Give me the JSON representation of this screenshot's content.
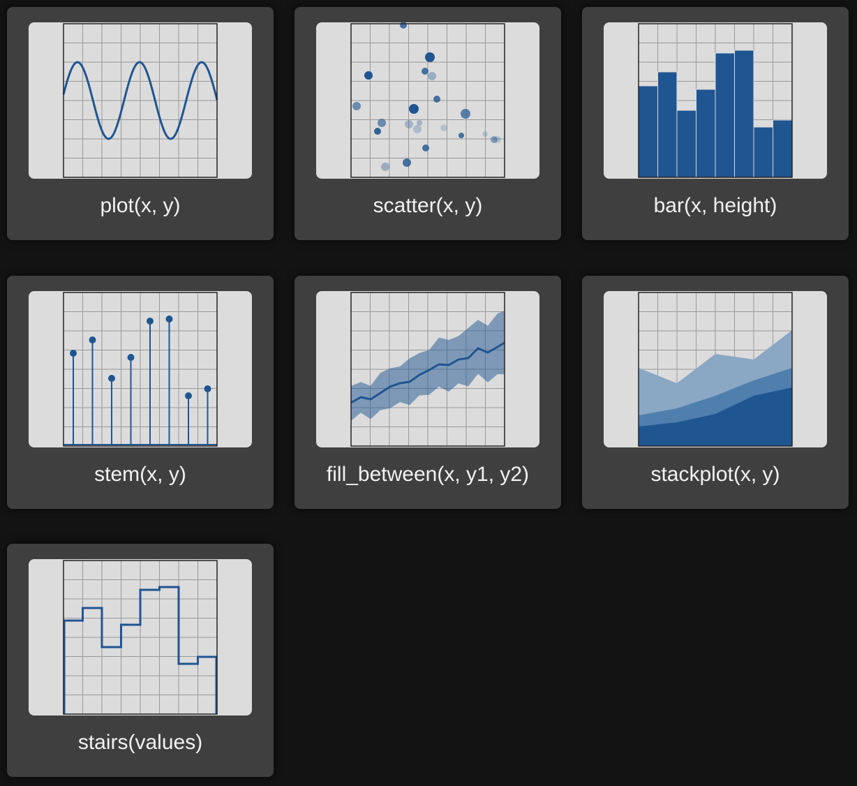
{
  "gallery": {
    "items": [
      {
        "label": "plot(x, y)"
      },
      {
        "label": "scatter(x, y)"
      },
      {
        "label": "bar(x, height)"
      },
      {
        "label": "stem(x, y)"
      },
      {
        "label": "fill_between(x, y1, y2)"
      },
      {
        "label": "stackplot(x, y)"
      },
      {
        "label": "stairs(values)"
      }
    ]
  }
}
